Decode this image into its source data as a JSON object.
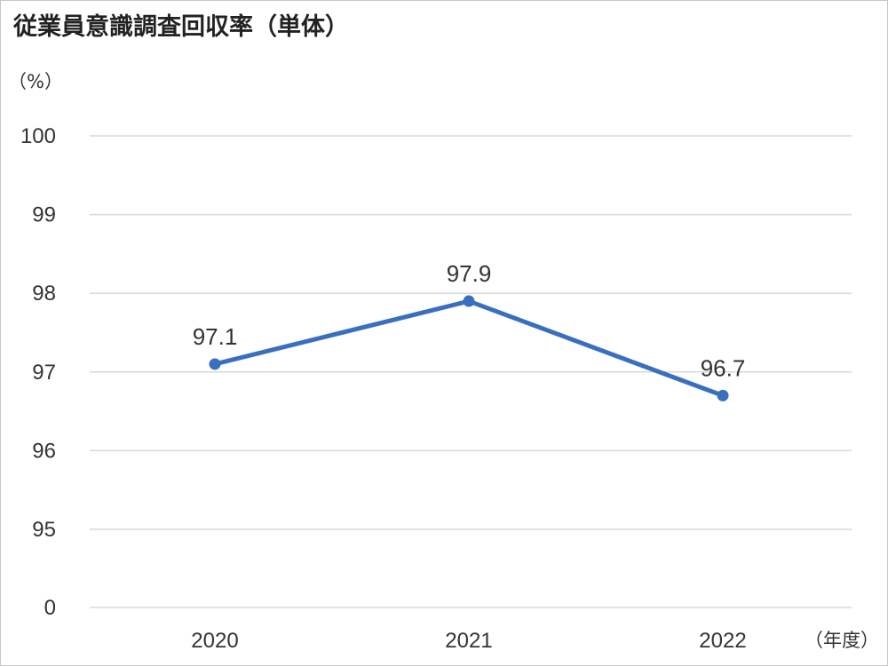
{
  "chart_data": {
    "type": "line",
    "title": "従業員意識調査回収率（単体）",
    "ylabel": "（%）",
    "xlabel": "（年度）",
    "categories": [
      "2020",
      "2021",
      "2022"
    ],
    "series": [
      {
        "values": [
          97.1,
          97.9,
          96.7
        ],
        "color": "#3a6fbf"
      }
    ],
    "data_labels": [
      "97.1",
      "97.9",
      "96.7"
    ],
    "yticks": [
      {
        "value": 100,
        "label": "100"
      },
      {
        "value": 99,
        "label": "99"
      },
      {
        "value": 98,
        "label": "98"
      },
      {
        "value": 97,
        "label": "97"
      },
      {
        "value": 96,
        "label": "96"
      },
      {
        "value": 95,
        "label": "95"
      },
      {
        "value": 0,
        "label": "0"
      }
    ],
    "axis_break": "between 95 and 0",
    "grid": true,
    "legend": "none"
  }
}
